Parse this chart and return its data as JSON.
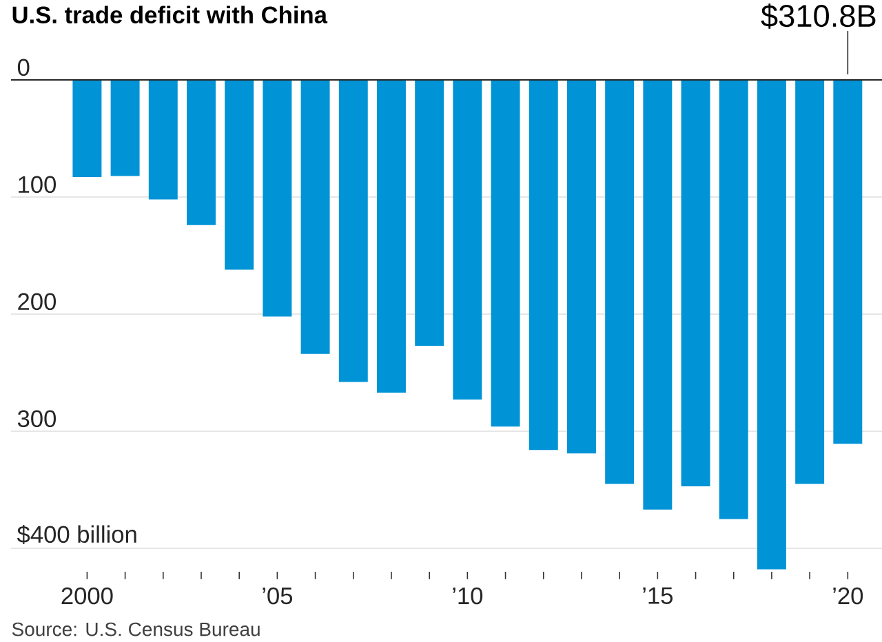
{
  "chart_data": {
    "type": "bar",
    "title": "U.S. trade deficit with China",
    "categories": [
      "2000",
      null,
      null,
      null,
      null,
      "’05",
      null,
      null,
      null,
      null,
      "’10",
      null,
      null,
      null,
      null,
      "’15",
      null,
      null,
      null,
      null,
      "’20"
    ],
    "values": [
      83,
      82,
      102,
      124,
      162,
      202,
      234,
      258,
      267,
      227,
      273,
      296,
      316,
      319,
      345,
      367,
      347,
      375,
      418,
      345,
      310.8
    ],
    "color": "#0093d6",
    "ylim": [
      420,
      0
    ],
    "yticks": [
      0,
      100,
      200,
      300,
      {
        "value": 400,
        "label": "$400 billion"
      }
    ],
    "grid": "y",
    "annotations": [
      "$310.8B",
      "Source: U.S. Census Bureau"
    ]
  }
}
